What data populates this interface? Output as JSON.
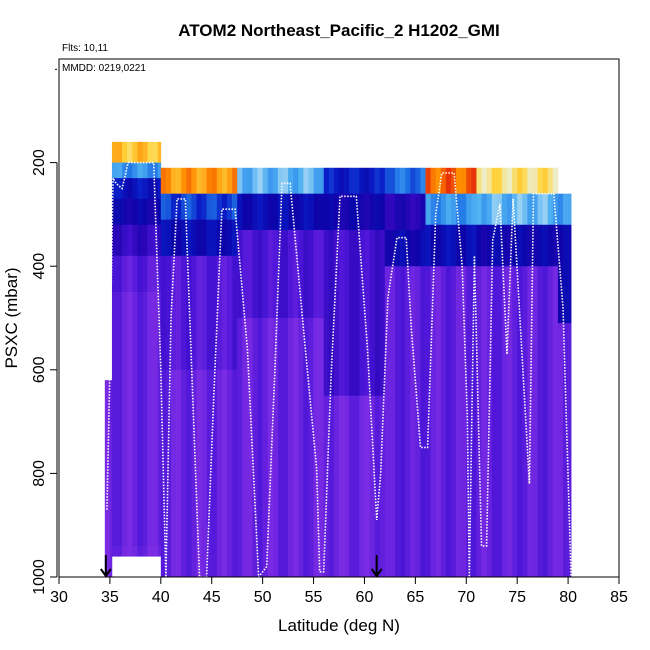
{
  "chart_data": {
    "type": "heatmap",
    "title": "ATOM2 Northeast_Pacific_2 H1202_GMI",
    "annotations": [
      "Flts: 10,11",
      "MMDD: 0219,0221"
    ],
    "xlabel": "Latitude (deg N)",
    "ylabel": "PSXC (mbar)",
    "xlim": [
      30,
      85
    ],
    "ylim": [
      1000,
      0
    ],
    "xticks": [
      30,
      35,
      40,
      45,
      50,
      55,
      60,
      65,
      70,
      75,
      80,
      85
    ],
    "yticks": [
      200,
      400,
      600,
      800,
      1000
    ],
    "grid": false,
    "colormap": [
      "#7a2be3",
      "#4c15d8",
      "#2a06b8",
      "#0b04a8",
      "#0a1cc7",
      "#1e73e6",
      "#4fb0f2",
      "#e8f4f6",
      "#ffd640",
      "#ff8c00",
      "#e11a0c",
      "#b00000"
    ],
    "field": [
      {
        "lon_range": [
          34.5,
          35.2
        ],
        "levels": [
          {
            "p": [
              620,
              700
            ],
            "v": 0.04
          },
          {
            "p": [
              700,
              1000
            ],
            "v": 0.02
          }
        ]
      },
      {
        "lon_range": [
          35.2,
          40.0
        ],
        "levels": [
          {
            "p": [
              160,
              200
            ],
            "v": 0.75
          },
          {
            "p": [
              200,
              230
            ],
            "v": 0.5
          },
          {
            "p": [
              230,
              270
            ],
            "v": 0.33
          },
          {
            "p": [
              270,
              320
            ],
            "v": 0.26
          },
          {
            "p": [
              320,
              380
            ],
            "v": 0.16
          },
          {
            "p": [
              380,
              450
            ],
            "v": 0.07
          },
          {
            "p": [
              450,
              940
            ],
            "v": 0.04
          },
          {
            "p": [
              940,
              960
            ],
            "v": 0.02
          }
        ]
      },
      {
        "lon_range": [
          40.0,
          47.5
        ],
        "levels": [
          {
            "p": [
              210,
              260
            ],
            "v": 0.8
          },
          {
            "p": [
              260,
              310
            ],
            "v": 0.4
          },
          {
            "p": [
              310,
              380
            ],
            "v": 0.3
          },
          {
            "p": [
              380,
              600
            ],
            "v": 0.08
          },
          {
            "p": [
              600,
              1000
            ],
            "v": 0.04
          }
        ]
      },
      {
        "lon_range": [
          47.5,
          56.0
        ],
        "levels": [
          {
            "p": [
              210,
              260
            ],
            "v": 0.55
          },
          {
            "p": [
              260,
              330
            ],
            "v": 0.3
          },
          {
            "p": [
              330,
              500
            ],
            "v": 0.1
          },
          {
            "p": [
              500,
              1000
            ],
            "v": 0.04
          }
        ]
      },
      {
        "lon_range": [
          56.0,
          62.0
        ],
        "levels": [
          {
            "p": [
              210,
              260
            ],
            "v": 0.35
          },
          {
            "p": [
              260,
              330
            ],
            "v": 0.25
          },
          {
            "p": [
              330,
              650
            ],
            "v": 0.12
          },
          {
            "p": [
              650,
              1000
            ],
            "v": 0.03
          }
        ]
      },
      {
        "lon_range": [
          62.0,
          66.0
        ],
        "levels": [
          {
            "p": [
              210,
              260
            ],
            "v": 0.45
          },
          {
            "p": [
              260,
              330
            ],
            "v": 0.2
          },
          {
            "p": [
              330,
              400
            ],
            "v": 0.28
          },
          {
            "p": [
              400,
              1000
            ],
            "v": 0.06
          }
        ]
      },
      {
        "lon_range": [
          66.0,
          71.0
        ],
        "levels": [
          {
            "p": [
              210,
              260
            ],
            "v": 0.85
          },
          {
            "p": [
              260,
              320
            ],
            "v": 0.5
          },
          {
            "p": [
              320,
              400
            ],
            "v": 0.3
          },
          {
            "p": [
              400,
              1000
            ],
            "v": 0.05
          }
        ]
      },
      {
        "lon_range": [
          71.0,
          79.0
        ],
        "levels": [
          {
            "p": [
              210,
              260
            ],
            "v": 0.7
          },
          {
            "p": [
              260,
              320
            ],
            "v": 0.55
          },
          {
            "p": [
              320,
              400
            ],
            "v": 0.27
          },
          {
            "p": [
              400,
              1000
            ],
            "v": 0.05
          }
        ]
      },
      {
        "lon_range": [
          79.0,
          80.3
        ],
        "levels": [
          {
            "p": [
              260,
              320
            ],
            "v": 0.5
          },
          {
            "p": [
              320,
              510
            ],
            "v": 0.27
          },
          {
            "p": [
              510,
              1000
            ],
            "v": 0.03
          }
        ]
      }
    ],
    "flight_track": [
      [
        34.7,
        870
      ],
      [
        35.0,
        600
      ],
      [
        35.3,
        230
      ],
      [
        35.6,
        240
      ],
      [
        36.2,
        250
      ],
      [
        36.8,
        200
      ],
      [
        39.3,
        200
      ],
      [
        40.0,
        600
      ],
      [
        40.5,
        1000
      ],
      [
        41.0,
        500
      ],
      [
        41.6,
        270
      ],
      [
        42.4,
        270
      ],
      [
        43.8,
        1000
      ],
      [
        44.5,
        1000
      ],
      [
        45.2,
        650
      ],
      [
        46.0,
        290
      ],
      [
        47.3,
        290
      ],
      [
        48.5,
        560
      ],
      [
        49.6,
        1000
      ],
      [
        50.4,
        980
      ],
      [
        51.2,
        600
      ],
      [
        51.9,
        240
      ],
      [
        52.7,
        240
      ],
      [
        54.0,
        520
      ],
      [
        55.3,
        790
      ],
      [
        55.6,
        990
      ],
      [
        56.0,
        990
      ],
      [
        56.7,
        620
      ],
      [
        57.6,
        265
      ],
      [
        59.2,
        265
      ],
      [
        60.3,
        560
      ],
      [
        61.2,
        890
      ],
      [
        61.6,
        800
      ],
      [
        62.3,
        460
      ],
      [
        63.2,
        345
      ],
      [
        64.1,
        345
      ],
      [
        64.6,
        520
      ],
      [
        65.5,
        750
      ],
      [
        66.2,
        750
      ],
      [
        67.0,
        300
      ],
      [
        67.6,
        220
      ],
      [
        68.8,
        220
      ],
      [
        69.6,
        400
      ],
      [
        70.1,
        690
      ],
      [
        70.3,
        1000
      ],
      [
        70.8,
        380
      ],
      [
        71.5,
        940
      ],
      [
        72.0,
        940
      ],
      [
        72.6,
        350
      ],
      [
        73.3,
        280
      ],
      [
        74.0,
        570
      ],
      [
        74.6,
        270
      ],
      [
        76.2,
        820
      ],
      [
        76.6,
        260
      ],
      [
        78.6,
        260
      ],
      [
        79.5,
        480
      ],
      [
        80.3,
        1000
      ]
    ],
    "markers": [
      {
        "lat": 34.6,
        "type": "down-arrow"
      },
      {
        "lat": 61.2,
        "type": "down-arrow"
      }
    ]
  }
}
